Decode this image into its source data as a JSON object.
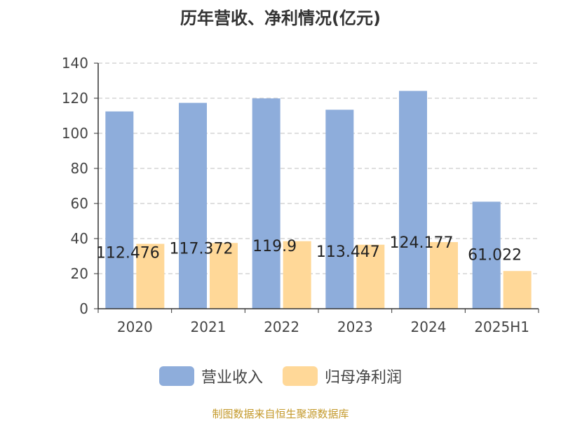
{
  "chart_data": {
    "type": "bar",
    "title": "历年营收、净利情况(亿元)",
    "categories": [
      "2020",
      "2021",
      "2022",
      "2023",
      "2024",
      "2025H1"
    ],
    "series": [
      {
        "name": "营业收入",
        "values": [
          112.476,
          117.372,
          119.9,
          113.447,
          124.177,
          61.022
        ],
        "labels": [
          "112.476",
          "117.372",
          "119.9",
          "113.447",
          "124.177",
          "61.022"
        ],
        "color": "#8eaddb"
      },
      {
        "name": "归母净利润",
        "values": [
          37,
          37.5,
          38.5,
          36.5,
          38,
          21.5
        ],
        "color": "#ffd898"
      }
    ],
    "ylim": [
      0,
      140
    ],
    "yticks": [
      "0",
      "20",
      "40",
      "60",
      "80",
      "100",
      "120",
      "140"
    ],
    "grid": true,
    "legend": "bottom"
  },
  "source": "制图数据来自恒生聚源数据库"
}
